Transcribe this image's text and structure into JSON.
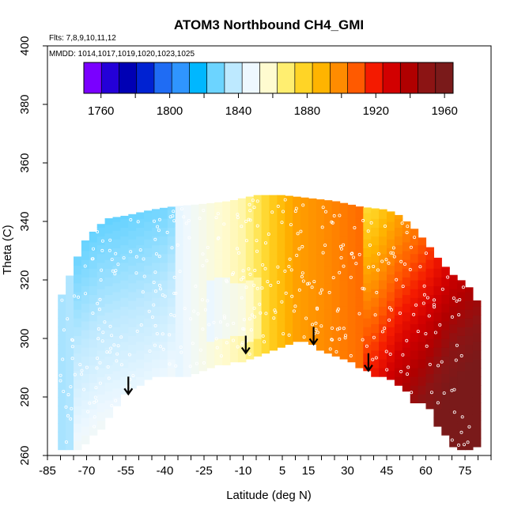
{
  "chart_data": {
    "type": "heatmap",
    "title": "ATOM3 Northbound CH4_GMI",
    "note_flights": "Flts: 7,8,9,10,11,12",
    "note_dates": "MMDD: 1014,1017,1019,1020,1023,1025",
    "xlabel": "Latitude (deg N)",
    "ylabel": "Theta (C)",
    "xlim": [
      -85,
      85
    ],
    "ylim": [
      260,
      400
    ],
    "x_ticks": [
      -85,
      -70,
      -55,
      -40,
      -25,
      -10,
      5,
      15,
      30,
      45,
      60,
      75
    ],
    "y_ticks": [
      260,
      280,
      300,
      320,
      340,
      360,
      380,
      400
    ],
    "colorbar": {
      "label_values": [
        1760,
        1800,
        1840,
        1880,
        1920,
        1960
      ],
      "range": [
        1750,
        1965
      ],
      "colors": [
        "#7a00ff",
        "#2400d8",
        "#0000b4",
        "#0022d2",
        "#1f6cf4",
        "#2f95ff",
        "#00b7ff",
        "#6cd4ff",
        "#bde9ff",
        "#eef8ff",
        "#fffbd0",
        "#ffee70",
        "#ffd426",
        "#ffb400",
        "#ff8c00",
        "#ff5a00",
        "#f41a00",
        "#d20000",
        "#b00000",
        "#8c1414",
        "#7a1a1a"
      ]
    },
    "surface_boundary": [
      [
        -80,
        262
      ],
      [
        -73,
        263
      ],
      [
        -65,
        269
      ],
      [
        -55,
        282
      ],
      [
        -45,
        287
      ],
      [
        -35,
        287
      ],
      [
        -20,
        291
      ],
      [
        -5,
        294
      ],
      [
        3,
        297
      ],
      [
        10,
        300
      ],
      [
        15,
        299
      ],
      [
        20,
        296
      ],
      [
        30,
        293
      ],
      [
        40,
        288
      ],
      [
        45,
        287
      ],
      [
        52,
        283
      ],
      [
        55,
        278
      ],
      [
        60,
        279
      ],
      [
        65,
        270
      ],
      [
        72,
        262
      ],
      [
        78,
        263
      ]
    ],
    "upper_boundary": [
      [
        -81,
        312
      ],
      [
        -78,
        318
      ],
      [
        -75,
        325
      ],
      [
        -71,
        333
      ],
      [
        -66,
        338
      ],
      [
        -62,
        341
      ],
      [
        -55,
        342
      ],
      [
        -45,
        344
      ],
      [
        -38,
        345
      ],
      [
        -25,
        346
      ],
      [
        -15,
        347
      ],
      [
        -5,
        349
      ],
      [
        5,
        349
      ],
      [
        15,
        348
      ],
      [
        25,
        347
      ],
      [
        35,
        345
      ],
      [
        45,
        344
      ],
      [
        50,
        342
      ],
      [
        55,
        338
      ],
      [
        60,
        333
      ],
      [
        65,
        327
      ],
      [
        70,
        322
      ],
      [
        75,
        319
      ],
      [
        78,
        316
      ],
      [
        80,
        312
      ]
    ],
    "field_anchors": [
      {
        "lat": -80,
        "ch4": 1833
      },
      {
        "lat": -65,
        "ch4": 1838
      },
      {
        "lat": -50,
        "ch4": 1840
      },
      {
        "lat": -40,
        "ch4": 1842
      },
      {
        "lat": -30,
        "ch4": 1848
      },
      {
        "lat": -20,
        "ch4": 1856
      },
      {
        "lat": -10,
        "ch4": 1862
      },
      {
        "lat": 0,
        "ch4": 1880
      },
      {
        "lat": 10,
        "ch4": 1895
      },
      {
        "lat": 20,
        "ch4": 1900
      },
      {
        "lat": 30,
        "ch4": 1905
      },
      {
        "lat": 40,
        "ch4": 1910
      },
      {
        "lat": 50,
        "ch4": 1925
      },
      {
        "lat": 60,
        "ch4": 1935
      },
      {
        "lat": 70,
        "ch4": 1948
      },
      {
        "lat": 80,
        "ch4": 1955
      }
    ],
    "arrows": [
      {
        "lat": -54,
        "theta": 281
      },
      {
        "lat": -9,
        "theta": 295
      },
      {
        "lat": 17,
        "theta": 298
      },
      {
        "lat": 38,
        "theta": 289
      }
    ]
  }
}
